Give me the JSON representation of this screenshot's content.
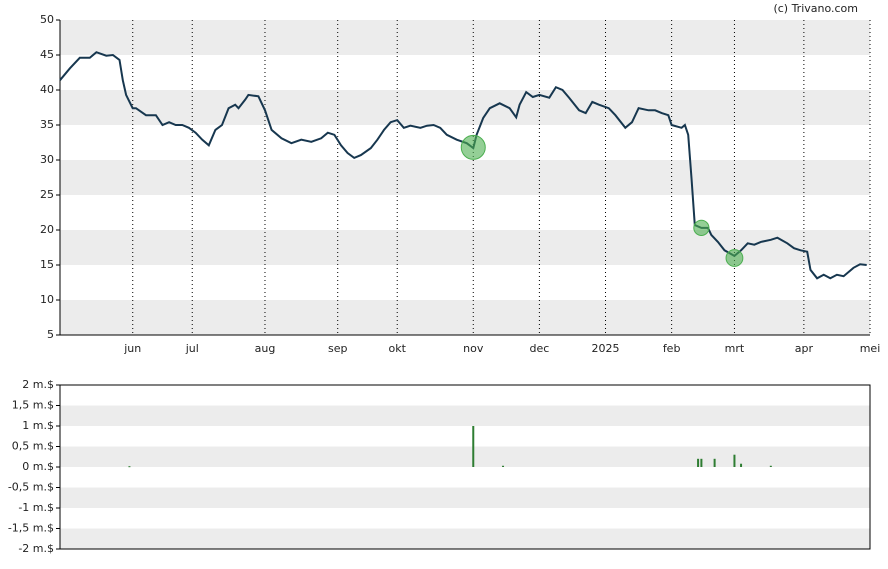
{
  "credit": "(c) Trivano.com",
  "chart_data": [
    {
      "type": "line",
      "color": "#17374f",
      "x": [
        0,
        3,
        6,
        9,
        11,
        14,
        16,
        18,
        19,
        20,
        22,
        23,
        26,
        29,
        31,
        33,
        35,
        37,
        39,
        41,
        43,
        45,
        47,
        49,
        51,
        53,
        54,
        56,
        57,
        60,
        62,
        64,
        67,
        70,
        73,
        76,
        79,
        81,
        83,
        85,
        87,
        89,
        91,
        94,
        96,
        98,
        100,
        102,
        104,
        106,
        109,
        111,
        113,
        115,
        117,
        120,
        123,
        125,
        126,
        128,
        130,
        133,
        136,
        138,
        139,
        141,
        143,
        145,
        148,
        150,
        152,
        154,
        157,
        159,
        161,
        163,
        166,
        168,
        171,
        173,
        175,
        178,
        180,
        182,
        184,
        185,
        188,
        189,
        190,
        191,
        192,
        194,
        196,
        197,
        199,
        201,
        204,
        206,
        208,
        210,
        212,
        215,
        217,
        220,
        222,
        224,
        226,
        227,
        229,
        231,
        233,
        235,
        237,
        240,
        242,
        244
      ],
      "y": [
        41.4,
        43.1,
        44.6,
        44.6,
        45.4,
        44.9,
        45.0,
        44.3,
        41.4,
        39.3,
        37.4,
        37.4,
        36.4,
        36.4,
        35.0,
        35.4,
        35.0,
        35.0,
        34.6,
        33.9,
        32.9,
        32.1,
        34.3,
        35.0,
        37.4,
        37.9,
        37.4,
        38.6,
        39.3,
        39.1,
        37.1,
        34.3,
        33.1,
        32.4,
        32.9,
        32.6,
        33.1,
        33.9,
        33.6,
        32.1,
        31.0,
        30.3,
        30.7,
        31.7,
        32.9,
        34.3,
        35.4,
        35.7,
        34.6,
        34.9,
        34.6,
        34.9,
        35.0,
        34.6,
        33.6,
        32.9,
        32.4,
        31.7,
        33.6,
        36.0,
        37.4,
        38.1,
        37.4,
        36.1,
        37.9,
        39.7,
        39.0,
        39.3,
        38.9,
        40.4,
        40.0,
        38.9,
        37.1,
        36.7,
        38.3,
        37.9,
        37.4,
        36.4,
        34.6,
        35.4,
        37.4,
        37.1,
        37.1,
        36.7,
        36.4,
        35.0,
        34.6,
        35.0,
        33.6,
        27.4,
        20.7,
        20.3,
        20.3,
        19.3,
        18.3,
        17.1,
        16.3,
        17.1,
        18.1,
        17.9,
        18.3,
        18.6,
        18.9,
        18.1,
        17.4,
        17.1,
        16.9,
        14.3,
        13.1,
        13.6,
        13.1,
        13.6,
        13.4,
        14.6,
        15.1,
        15.0
      ],
      "events": [
        {
          "x": 125,
          "y": 31.8
        },
        {
          "x": 194,
          "y": 20.3
        },
        {
          "x": 204,
          "y": 16.0
        }
      ],
      "event_color": "#4caf50",
      "xlim": [
        0,
        245
      ],
      "xticks": [
        {
          "value": 22,
          "label": "jun"
        },
        {
          "value": 40,
          "label": "jul"
        },
        {
          "value": 62,
          "label": "aug"
        },
        {
          "value": 84,
          "label": "sep"
        },
        {
          "value": 102,
          "label": "okt"
        },
        {
          "value": 125,
          "label": "nov"
        },
        {
          "value": 145,
          "label": "dec"
        },
        {
          "value": 165,
          "label": "2025"
        },
        {
          "value": 185,
          "label": "feb"
        },
        {
          "value": 204,
          "label": "mrt"
        },
        {
          "value": 225,
          "label": "apr"
        },
        {
          "value": 245,
          "label": "mei"
        }
      ],
      "ylim": [
        5,
        50
      ],
      "yticks": [
        5,
        10,
        15,
        20,
        25,
        30,
        35,
        40,
        45,
        50
      ],
      "x_grid": true,
      "bands": true
    },
    {
      "type": "bar",
      "color": "#2e7d32",
      "x": [
        21,
        125,
        134,
        193,
        194,
        198,
        204,
        206,
        215
      ],
      "values": [
        0.02,
        1.0,
        0.03,
        0.2,
        0.2,
        0.2,
        0.3,
        0.08,
        0.03
      ],
      "xlim": [
        0,
        245
      ],
      "ylim": [
        -2,
        2
      ],
      "yticks": [
        {
          "value": -2,
          "label": "-2 m.$"
        },
        {
          "value": -1.5,
          "label": "-1,5 m.$"
        },
        {
          "value": -1,
          "label": "-1 m.$"
        },
        {
          "value": -0.5,
          "label": "-0,5 m.$"
        },
        {
          "value": 0,
          "label": "0 m.$"
        },
        {
          "value": 0.5,
          "label": "0,5 m.$"
        },
        {
          "value": 1,
          "label": "1 m.$"
        },
        {
          "value": 1.5,
          "label": "1,5 m.$"
        },
        {
          "value": 2,
          "label": "2 m.$"
        }
      ],
      "x_grid": false,
      "bands": true
    }
  ]
}
